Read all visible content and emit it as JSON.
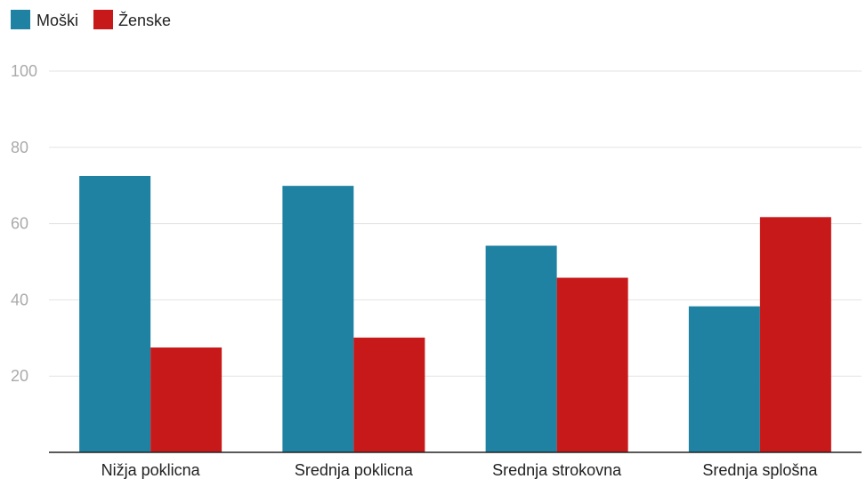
{
  "chart_data": {
    "type": "bar",
    "categories": [
      "Nižja poklicna",
      "Srednja poklicna",
      "Srednja strokovna",
      "Srednja splošna"
    ],
    "series": [
      {
        "name": "Moški",
        "color": "#1f82a2",
        "values": [
          72.5,
          69.9,
          54.2,
          38.3
        ]
      },
      {
        "name": "Ženske",
        "color": "#c8191a",
        "values": [
          27.5,
          30.1,
          45.8,
          61.7
        ]
      }
    ],
    "yticks": [
      "20",
      "40",
      "60",
      "80",
      "100"
    ],
    "ylim": [
      0,
      100
    ],
    "grid": true,
    "legend_position": "top-left"
  }
}
